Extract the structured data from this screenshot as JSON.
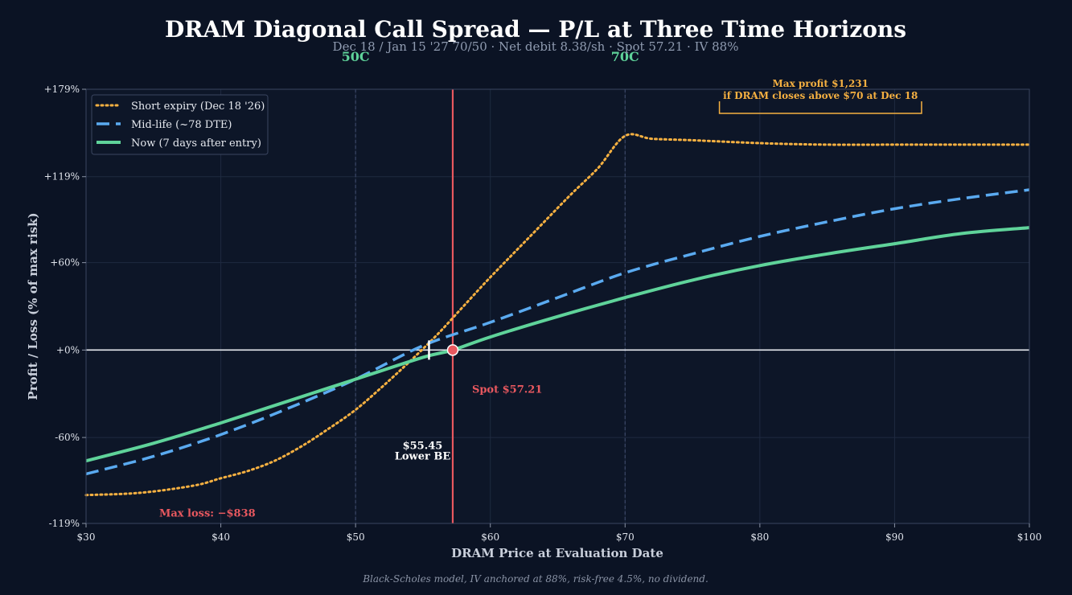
{
  "chart_data": {
    "type": "line",
    "title": "DRAM Diagonal Call Spread — P/L at Three Time Horizons",
    "subtitle": "Dec 18 / Jan 15 '27 70/50 · Net debit 8.38/sh · Spot 57.21 · IV 88%",
    "xlabel": "DRAM Price at Evaluation Date",
    "ylabel": "Profit / Loss (% of max risk)",
    "xlim": [
      30,
      100
    ],
    "ylim": [
      -119,
      179
    ],
    "x_ticks": [
      30,
      40,
      50,
      60,
      70,
      80,
      90,
      100
    ],
    "x_tick_labels": [
      "$30",
      "$40",
      "$50",
      "$60",
      "$70",
      "$80",
      "$90",
      "$100"
    ],
    "y_ticks": [
      -119,
      -60,
      0,
      60,
      119,
      179
    ],
    "y_tick_labels": [
      "-119%",
      "-60%",
      "+0%",
      "+60%",
      "+119%",
      "+179%"
    ],
    "grid": true,
    "legend_position": "top-left",
    "strikes": [
      {
        "label": "50C",
        "x": 50
      },
      {
        "label": "70C",
        "x": 70
      }
    ],
    "spot": {
      "x": 57.21,
      "label": "Spot $57.21",
      "color": "#e8585f"
    },
    "breakeven": {
      "x": 55.45,
      "label_price": "$55.45",
      "label_text": "Lower BE"
    },
    "max_profit": {
      "line1": "Max profit $1,231",
      "line2": "if DRAM closes above $70 at Dec 18",
      "x_range": [
        77,
        92
      ]
    },
    "max_loss": {
      "label": "Max loss: −$838",
      "x": 39,
      "y": -112
    },
    "series": [
      {
        "name": "Short expiry (Dec 18 '26)",
        "color": "#f5b041",
        "style": "dotted",
        "x": [
          30,
          34,
          38,
          40,
          42,
          44,
          46,
          48,
          50,
          52,
          54,
          56,
          58,
          60,
          62,
          64,
          66,
          68,
          70,
          72,
          75,
          80,
          85,
          90,
          95,
          100
        ],
        "y": [
          -99.5,
          -98,
          -93,
          -88,
          -83,
          -76,
          -66,
          -54,
          -41,
          -25,
          -8,
          10,
          30,
          50,
          69,
          88,
          107,
          125,
          147,
          145,
          144,
          142,
          141,
          141,
          141,
          141
        ]
      },
      {
        "name": "Mid-life (~78 DTE)",
        "color": "#5aaaf0",
        "style": "dashed",
        "x": [
          30,
          35,
          40,
          45,
          50,
          55,
          60,
          65,
          70,
          75,
          80,
          85,
          90,
          95,
          100
        ],
        "y": [
          -85,
          -73,
          -58,
          -40,
          -20,
          3,
          19,
          36,
          53,
          66,
          78,
          88,
          97,
          104,
          110
        ]
      },
      {
        "name": "Now (7 days after entry)",
        "color": "#5fd39a",
        "style": "solid",
        "x": [
          30,
          35,
          40,
          45,
          50,
          55,
          57.21,
          60,
          65,
          70,
          75,
          80,
          85,
          90,
          95,
          100
        ],
        "y": [
          -76,
          -64,
          -50,
          -35,
          -20,
          -5,
          0,
          9,
          23,
          36,
          48,
          58,
          66,
          73,
          80,
          84
        ]
      }
    ]
  },
  "footnote": "Black-Scholes model, IV anchored at 88%, risk-free 4.5%, no dividend."
}
